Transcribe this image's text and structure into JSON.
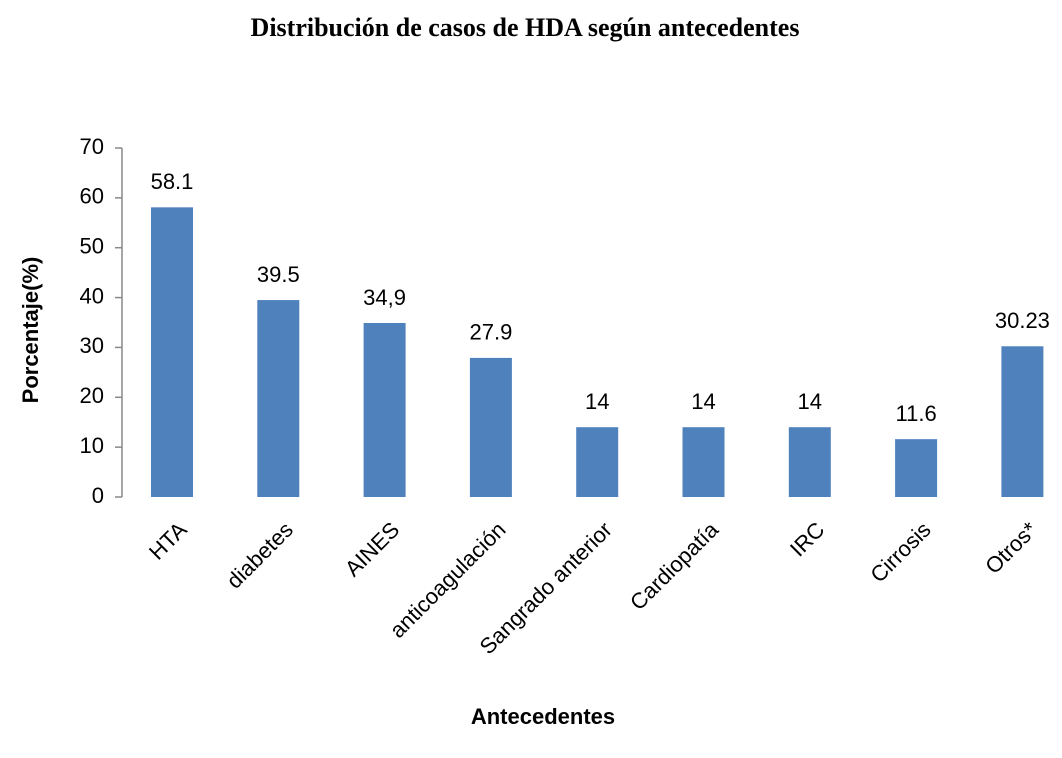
{
  "chart_data": {
    "type": "bar",
    "title": "Distribución de casos de HDA según antecedentes",
    "x_label": "Antecedentes",
    "y_label": "Porcentaje(%)",
    "categories": [
      "HTA",
      "diabetes",
      "AINES",
      "anticoagulación",
      "Sangrado anterior",
      "Cardiopatía",
      "IRC",
      "Cirrosis",
      "Otros*"
    ],
    "values": [
      58.1,
      39.5,
      34.9,
      27.9,
      14,
      14,
      14,
      11.6,
      30.23
    ],
    "value_labels": [
      "58.1",
      "39.5",
      "34,9",
      "27.9",
      "14",
      "14",
      "14",
      "11.6",
      "30.23"
    ],
    "color": "#4f81bd",
    "ylim": [
      0,
      70
    ],
    "yticks": [
      0,
      10,
      20,
      30,
      40,
      50,
      60,
      70
    ],
    "grid": false
  }
}
